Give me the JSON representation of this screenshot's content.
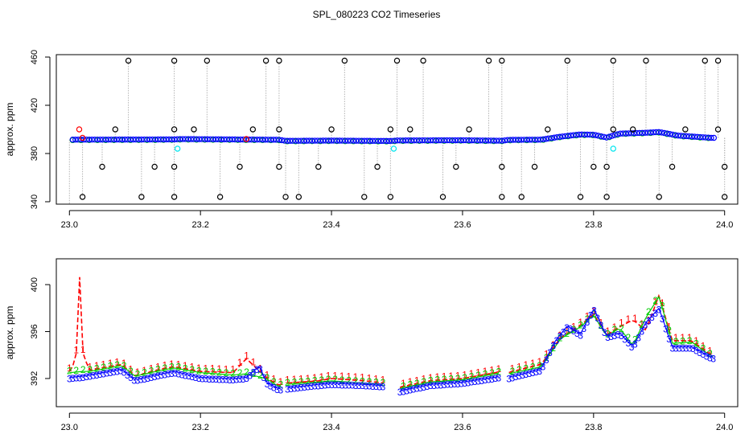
{
  "title": "SPL_080223  CO2 Timeseries",
  "colors": {
    "black": "#000000",
    "red": "#ff0000",
    "blue": "#0000ff",
    "green": "#00cd00",
    "cyan": "#00e5ee",
    "grey": "#b3b3b3"
  },
  "chart_data": [
    {
      "type": "scatter",
      "title": "SPL_080223  CO2 Timeseries",
      "xlabel": "",
      "ylabel": "approx. ppm",
      "xlim": [
        22.98,
        24.02
      ],
      "ylim": [
        338,
        462
      ],
      "xticks": [
        "23.0",
        "23.2",
        "23.4",
        "23.6",
        "23.8",
        "24.0"
      ],
      "yticks": [
        "340",
        "380",
        "420",
        "460"
      ],
      "baseline": [
        [
          23.0,
          391.5
        ],
        [
          23.1,
          391.6
        ],
        [
          23.16,
          391.7
        ],
        [
          23.17,
          392.0
        ],
        [
          23.32,
          391.4
        ],
        [
          23.33,
          390.5
        ],
        [
          23.4,
          390.7
        ],
        [
          23.49,
          390.4
        ],
        [
          23.5,
          390.8
        ],
        [
          23.6,
          391.0
        ],
        [
          23.66,
          390.6
        ],
        [
          23.67,
          391.3
        ],
        [
          23.72,
          391.5
        ],
        [
          23.75,
          394.0
        ],
        [
          23.78,
          395.8
        ],
        [
          23.8,
          395.6
        ],
        [
          23.82,
          393.3
        ],
        [
          23.84,
          396.5
        ],
        [
          23.88,
          397.2
        ],
        [
          23.9,
          397.8
        ],
        [
          23.93,
          394.8
        ],
        [
          23.98,
          393.0
        ]
      ],
      "black_outliers": [
        [
          23.02,
          344
        ],
        [
          23.05,
          369
        ],
        [
          23.07,
          400
        ],
        [
          23.09,
          457
        ],
        [
          23.11,
          344
        ],
        [
          23.13,
          369
        ],
        [
          23.16,
          344
        ],
        [
          23.16,
          369
        ],
        [
          23.16,
          400
        ],
        [
          23.16,
          457
        ],
        [
          23.19,
          400
        ],
        [
          23.21,
          457
        ],
        [
          23.23,
          344
        ],
        [
          23.26,
          369
        ],
        [
          23.28,
          400
        ],
        [
          23.3,
          457
        ],
        [
          23.32,
          457
        ],
        [
          23.32,
          400
        ],
        [
          23.32,
          369
        ],
        [
          23.33,
          344
        ],
        [
          23.35,
          344
        ],
        [
          23.38,
          369
        ],
        [
          23.4,
          400
        ],
        [
          23.42,
          457
        ],
        [
          23.45,
          344
        ],
        [
          23.47,
          369
        ],
        [
          23.49,
          344
        ],
        [
          23.49,
          400
        ],
        [
          23.5,
          457
        ],
        [
          23.52,
          400
        ],
        [
          23.54,
          457
        ],
        [
          23.57,
          344
        ],
        [
          23.59,
          369
        ],
        [
          23.61,
          400
        ],
        [
          23.64,
          457
        ],
        [
          23.66,
          457
        ],
        [
          23.66,
          369
        ],
        [
          23.66,
          344
        ],
        [
          23.69,
          344
        ],
        [
          23.71,
          369
        ],
        [
          23.73,
          400
        ],
        [
          23.76,
          457
        ],
        [
          23.78,
          344
        ],
        [
          23.8,
          369
        ],
        [
          23.82,
          344
        ],
        [
          23.82,
          369
        ],
        [
          23.83,
          457
        ],
        [
          23.83,
          400
        ],
        [
          23.86,
          400
        ],
        [
          23.88,
          457
        ],
        [
          23.9,
          344
        ],
        [
          23.92,
          369
        ],
        [
          23.94,
          400
        ],
        [
          23.97,
          457
        ],
        [
          23.99,
          457
        ],
        [
          23.99,
          400
        ],
        [
          24.0,
          369
        ],
        [
          24.0,
          344
        ]
      ],
      "red_points": [
        [
          23.015,
          400
        ],
        [
          23.02,
          393
        ],
        [
          23.27,
          392
        ]
      ],
      "cyan_points": [
        [
          23.165,
          384
        ],
        [
          23.495,
          384
        ],
        [
          23.83,
          384
        ]
      ]
    },
    {
      "type": "line",
      "title": "",
      "xlabel": "",
      "ylabel": "approx. ppm",
      "xlim": [
        22.98,
        24.02
      ],
      "ylim": [
        389.6,
        402.2
      ],
      "xticks": [
        "23.0",
        "23.2",
        "23.4",
        "23.6",
        "23.8",
        "24.0"
      ],
      "yticks": [
        "392",
        "396",
        "400"
      ],
      "gaps": [
        [
          23.325,
          23.33
        ],
        [
          23.48,
          23.5
        ],
        [
          23.66,
          23.67
        ]
      ],
      "series": [
        {
          "marker": "1",
          "color": "#ff0000",
          "points": [
            [
              23.0,
              392.6
            ],
            [
              23.01,
              393.5
            ],
            [
              23.015,
              401.5
            ],
            [
              23.02,
              394.3
            ],
            [
              23.03,
              392.7
            ],
            [
              23.08,
              393.2
            ],
            [
              23.1,
              392.2
            ],
            [
              23.14,
              392.8
            ],
            [
              23.16,
              393.0
            ],
            [
              23.2,
              392.6
            ],
            [
              23.25,
              392.5
            ],
            [
              23.27,
              393.7
            ],
            [
              23.3,
              392.1
            ],
            [
              23.32,
              391.4
            ],
            [
              23.33,
              391.6
            ],
            [
              23.38,
              391.8
            ],
            [
              23.4,
              392.0
            ],
            [
              23.45,
              391.8
            ],
            [
              23.48,
              391.6
            ],
            [
              23.5,
              391.2
            ],
            [
              23.55,
              391.8
            ],
            [
              23.6,
              392.0
            ],
            [
              23.66,
              392.6
            ],
            [
              23.67,
              392.5
            ],
            [
              23.72,
              393.2
            ],
            [
              23.75,
              395.5
            ],
            [
              23.78,
              396.5
            ],
            [
              23.8,
              397.5
            ],
            [
              23.82,
              395.7
            ],
            [
              23.84,
              396.4
            ],
            [
              23.86,
              397.0
            ],
            [
              23.88,
              396.1
            ],
            [
              23.9,
              399.1
            ],
            [
              23.92,
              395.2
            ],
            [
              23.95,
              395.2
            ],
            [
              23.98,
              394.0
            ]
          ]
        },
        {
          "marker": "2",
          "color": "#00cd00",
          "points": [
            [
              23.0,
              392.5
            ],
            [
              23.02,
              392.6
            ],
            [
              23.03,
              392.6
            ],
            [
              23.08,
              393.1
            ],
            [
              23.1,
              392.2
            ],
            [
              23.14,
              392.7
            ],
            [
              23.16,
              392.9
            ],
            [
              23.2,
              392.5
            ],
            [
              23.25,
              392.3
            ],
            [
              23.27,
              392.4
            ],
            [
              23.3,
              392.0
            ],
            [
              23.32,
              391.3
            ],
            [
              23.33,
              391.5
            ],
            [
              23.38,
              391.7
            ],
            [
              23.4,
              391.8
            ],
            [
              23.45,
              391.6
            ],
            [
              23.48,
              391.5
            ],
            [
              23.5,
              391.1
            ],
            [
              23.55,
              391.7
            ],
            [
              23.6,
              391.9
            ],
            [
              23.66,
              392.5
            ],
            [
              23.67,
              392.4
            ],
            [
              23.72,
              393.0
            ],
            [
              23.75,
              395.4
            ],
            [
              23.78,
              396.4
            ],
            [
              23.8,
              397.4
            ],
            [
              23.82,
              395.6
            ],
            [
              23.84,
              396.3
            ],
            [
              23.86,
              394.8
            ],
            [
              23.88,
              397.2
            ],
            [
              23.9,
              399.0
            ],
            [
              23.92,
              395.0
            ],
            [
              23.95,
              395.1
            ],
            [
              23.98,
              393.9
            ]
          ]
        },
        {
          "marker": "3",
          "color": "#0000ff",
          "points": [
            [
              23.0,
              392.1
            ],
            [
              23.02,
              392.2
            ],
            [
              23.03,
              392.3
            ],
            [
              23.08,
              392.8
            ],
            [
              23.1,
              391.9
            ],
            [
              23.14,
              392.4
            ],
            [
              23.16,
              392.6
            ],
            [
              23.2,
              392.1
            ],
            [
              23.25,
              392.0
            ],
            [
              23.27,
              392.1
            ],
            [
              23.29,
              393.1
            ],
            [
              23.3,
              391.7
            ],
            [
              23.32,
              391.1
            ],
            [
              23.33,
              391.2
            ],
            [
              23.38,
              391.5
            ],
            [
              23.4,
              391.6
            ],
            [
              23.45,
              391.5
            ],
            [
              23.48,
              391.4
            ],
            [
              23.5,
              390.9
            ],
            [
              23.55,
              391.5
            ],
            [
              23.6,
              391.7
            ],
            [
              23.66,
              392.2
            ],
            [
              23.67,
              392.1
            ],
            [
              23.72,
              392.8
            ],
            [
              23.74,
              395.1
            ],
            [
              23.76,
              396.5
            ],
            [
              23.78,
              395.8
            ],
            [
              23.8,
              398.0
            ],
            [
              23.82,
              395.6
            ],
            [
              23.84,
              395.9
            ],
            [
              23.86,
              394.7
            ],
            [
              23.88,
              396.8
            ],
            [
              23.9,
              398.0
            ],
            [
              23.92,
              394.7
            ],
            [
              23.95,
              394.7
            ],
            [
              23.98,
              393.8
            ]
          ]
        }
      ]
    }
  ]
}
